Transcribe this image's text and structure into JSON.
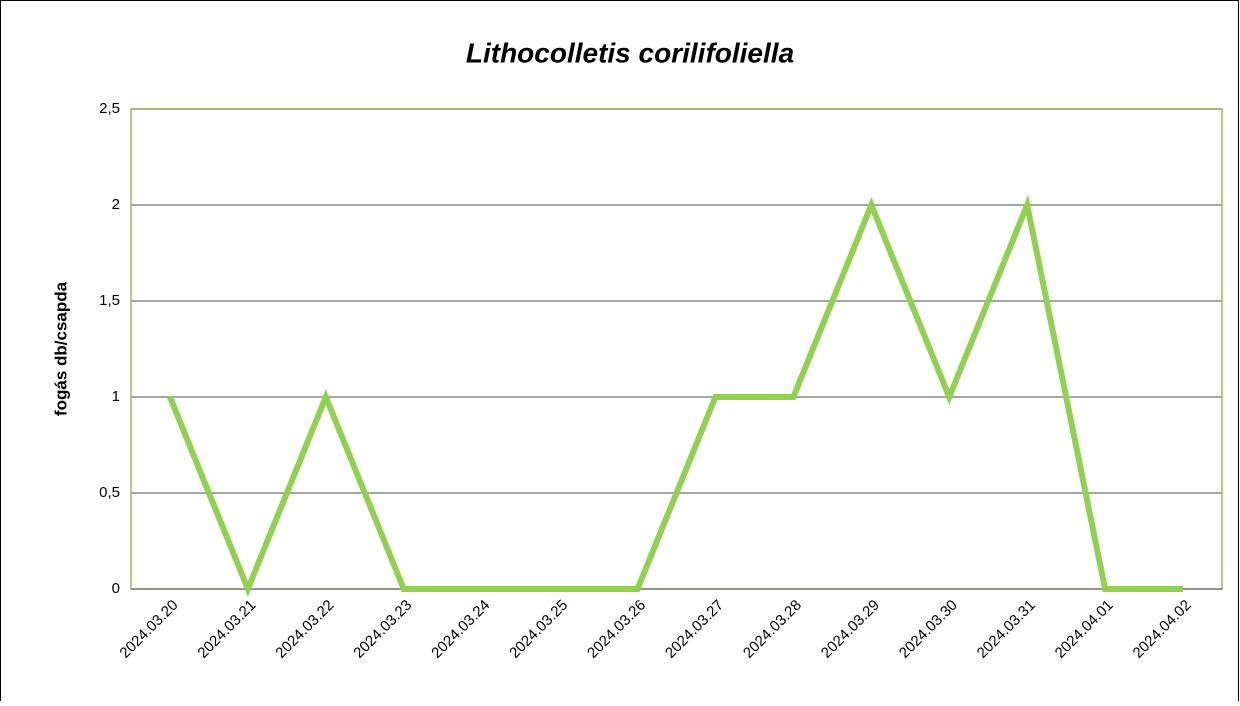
{
  "chart_data": {
    "type": "line",
    "title": "Lithocolletis corilifoliella",
    "ylabel": "fogás db/csapda",
    "categories": [
      "2024.03.20",
      "2024.03.21",
      "2024.03.22",
      "2024.03.23",
      "2024.03.24",
      "2024.03.25",
      "2024.03.26",
      "2024.03.27",
      "2024.03.28",
      "2024.03.29",
      "2024.03.30",
      "2024.03.31",
      "2024.04.01",
      "2024.04.02"
    ],
    "values": [
      1,
      0,
      1,
      0,
      0,
      0,
      0,
      1,
      1,
      2,
      1,
      2,
      0,
      0
    ],
    "color": "#92d050",
    "ylim": [
      0,
      2.5
    ],
    "yticks": [
      0,
      {
        "value": 0.5,
        "label": "0,5"
      },
      1,
      {
        "value": 1.5,
        "label": "1,5"
      },
      2,
      {
        "value": 2.5,
        "label": "2,5"
      }
    ],
    "grid": true
  }
}
